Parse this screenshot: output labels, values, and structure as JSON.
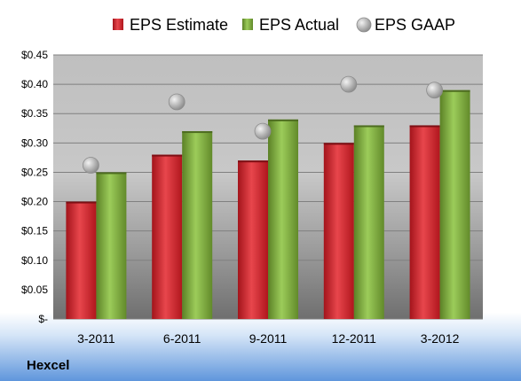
{
  "company": "Hexcel",
  "chart_data": {
    "type": "bar",
    "categories": [
      "3-2011",
      "6-2011",
      "9-2011",
      "12-2011",
      "3-2012"
    ],
    "series": [
      {
        "name": "EPS Estimate",
        "kind": "bar",
        "color": "#cc1f27",
        "values": [
          0.2,
          0.28,
          0.27,
          0.3,
          0.33
        ]
      },
      {
        "name": "EPS Actual",
        "kind": "bar",
        "color": "#77a03a",
        "values": [
          0.25,
          0.32,
          0.34,
          0.33,
          0.39
        ]
      },
      {
        "name": "EPS GAAP",
        "kind": "marker",
        "color": "#a8a8a8",
        "values": [
          0.262,
          0.37,
          0.32,
          0.4,
          0.39
        ]
      }
    ],
    "ylim": [
      0,
      0.45
    ],
    "yticks": [
      0,
      0.05,
      0.1,
      0.15,
      0.2,
      0.25,
      0.3,
      0.35,
      0.4,
      0.45
    ],
    "ytick_labels": [
      "$-",
      "$0.05",
      "$0.10",
      "$0.15",
      "$0.20",
      "$0.25",
      "$0.30",
      "$0.35",
      "$0.40",
      "$0.45"
    ],
    "grid": true,
    "legend_position": "top"
  }
}
